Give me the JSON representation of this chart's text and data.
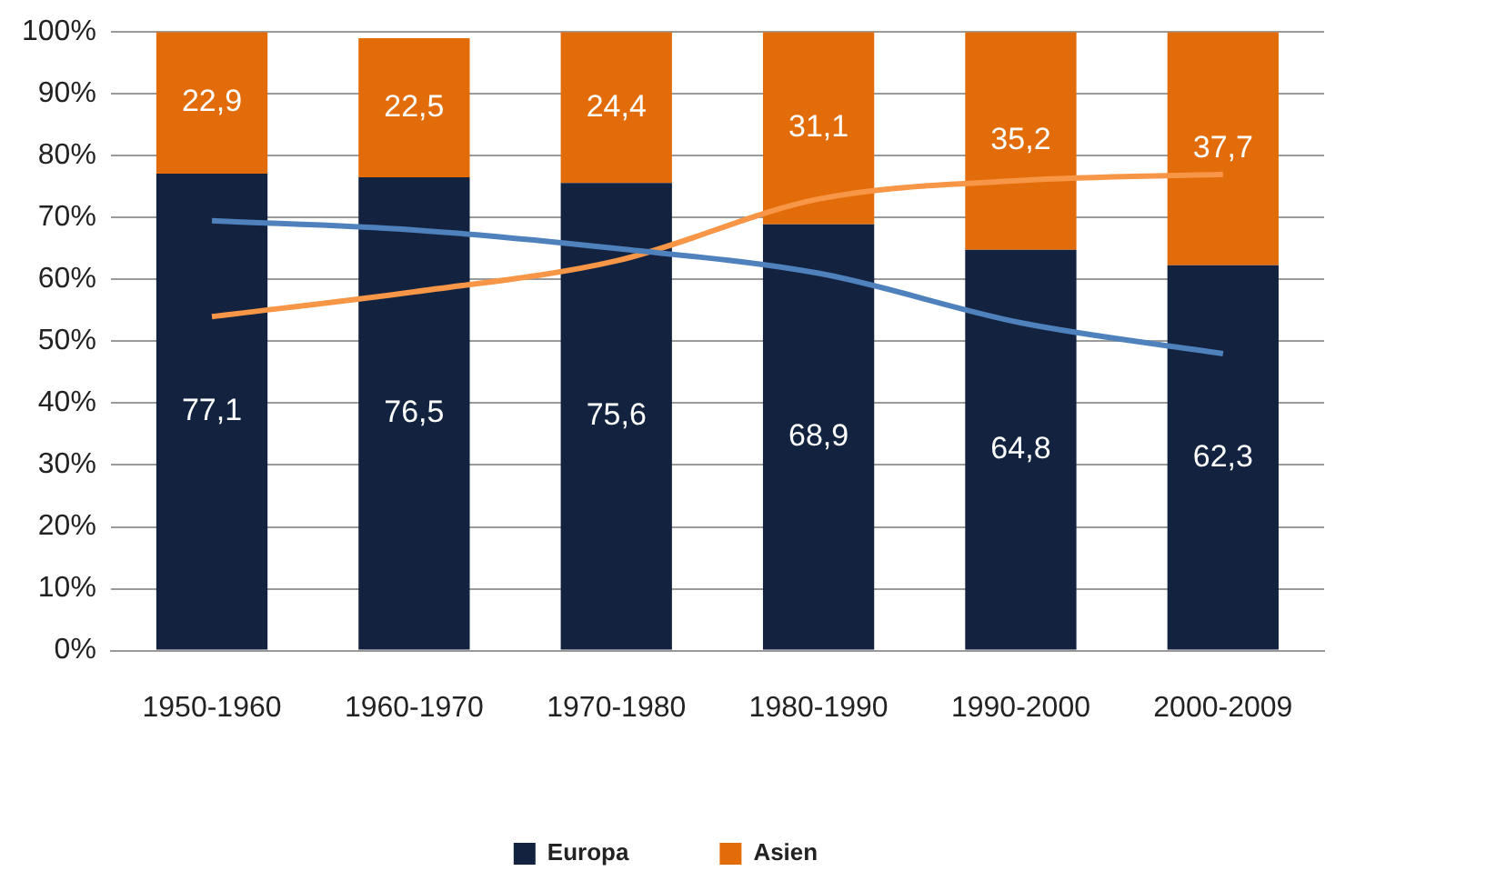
{
  "chart_data": {
    "type": "bar",
    "stacked": true,
    "categories": [
      "1950-1960",
      "1960-1970",
      "1970-1980",
      "1980-1990",
      "1990-2000",
      "2000-2009"
    ],
    "series": [
      {
        "name": "Europa",
        "color": "#13233f",
        "values": [
          77.1,
          76.5,
          75.6,
          68.9,
          64.8,
          62.3
        ],
        "value_labels": [
          "77,1",
          "76,5",
          "75,6",
          "68,9",
          "64,8",
          "62,3"
        ]
      },
      {
        "name": "Asien",
        "color": "#e36c0a",
        "values": [
          22.9,
          22.5,
          24.4,
          31.1,
          35.2,
          37.7
        ],
        "value_labels": [
          "22,9",
          "22,5",
          "24,4",
          "31,1",
          "35,2",
          "37,7"
        ]
      },
      {
        "type": "line",
        "color": "#4f81bd",
        "values": [
          69.5,
          68,
          65,
          61,
          53,
          48
        ]
      },
      {
        "type": "line",
        "color": "#f79646",
        "values": [
          54,
          58,
          63,
          73,
          76,
          77
        ]
      }
    ],
    "ylim": [
      0,
      100
    ],
    "yticks": [
      {
        "value": 0,
        "label": "0%"
      },
      {
        "value": 10,
        "label": "10%"
      },
      {
        "value": 20,
        "label": "20%"
      },
      {
        "value": 30,
        "label": "30%"
      },
      {
        "value": 40,
        "label": "40%"
      },
      {
        "value": 50,
        "label": "50%"
      },
      {
        "value": 60,
        "label": "60%"
      },
      {
        "value": 70,
        "label": "70%"
      },
      {
        "value": 80,
        "label": "80%"
      },
      {
        "value": 90,
        "label": "90%"
      },
      {
        "value": 100,
        "label": "100%"
      }
    ],
    "grid": "y",
    "legend": "bottom",
    "marker": "none"
  }
}
